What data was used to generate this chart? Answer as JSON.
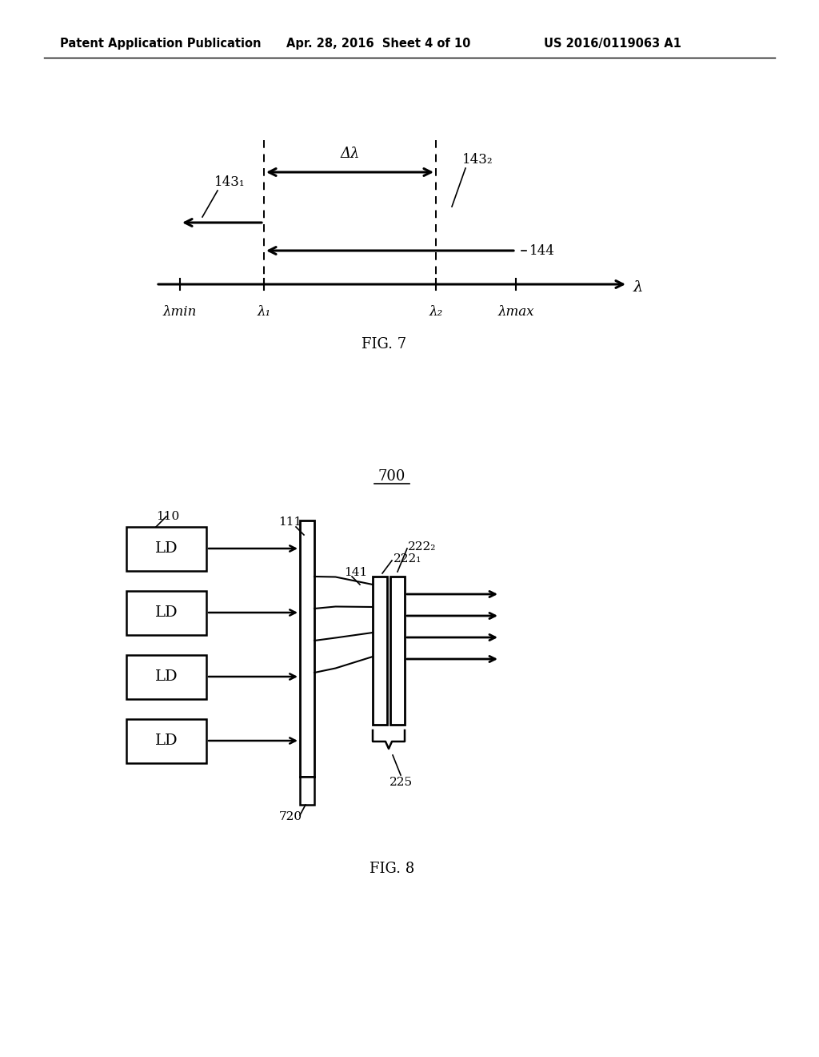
{
  "bg_color": "#ffffff",
  "header_text": "Patent Application Publication",
  "header_date": "Apr. 28, 2016  Sheet 4 of 10",
  "header_patent": "US 2016/0119063 A1",
  "fig7_label": "FIG. 7",
  "fig8_label": "FIG. 8",
  "fig8_title": "700",
  "fig7_axis_label": "λ",
  "fig7_xmin_label": "λmin",
  "fig7_x1_label": "λ₁",
  "fig7_x2_label": "λ₂",
  "fig7_xmax_label": "λmax",
  "fig7_delta_label": "Δλ",
  "fig7_label_143_1": "143₁",
  "fig7_label_143_2": "143₂",
  "fig7_label_144": "144",
  "fig8_110": "110",
  "fig8_111": "111",
  "fig8_141": "141",
  "fig8_222_1": "222₁",
  "fig8_222_2": "222₂",
  "fig8_225": "225",
  "fig8_720": "720",
  "ld_label": "LD"
}
